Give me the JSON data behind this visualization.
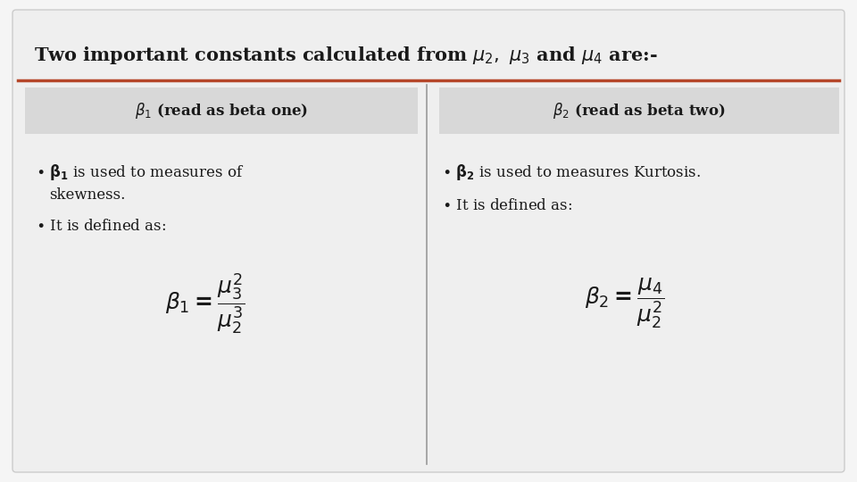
{
  "title": "Two important constants calculated from $\\mu_2,\\ \\mu_3$ and $\\mu_4$ are:-",
  "title_fontsize": 15,
  "title_color": "#1a1a1a",
  "line_color": "#b5472a",
  "bg_color": "#efefef",
  "white_bg": "#f5f5f5",
  "header_bg": "#d8d8d8",
  "divider_color": "#999999",
  "left_header": "$\\beta_1$ (read as beta one)",
  "right_header": "$\\beta_2$ (read as beta two)",
  "text_color": "#1a1a1a",
  "text_fontsize": 12,
  "header_fontsize": 12,
  "formula_fontsize": 18
}
